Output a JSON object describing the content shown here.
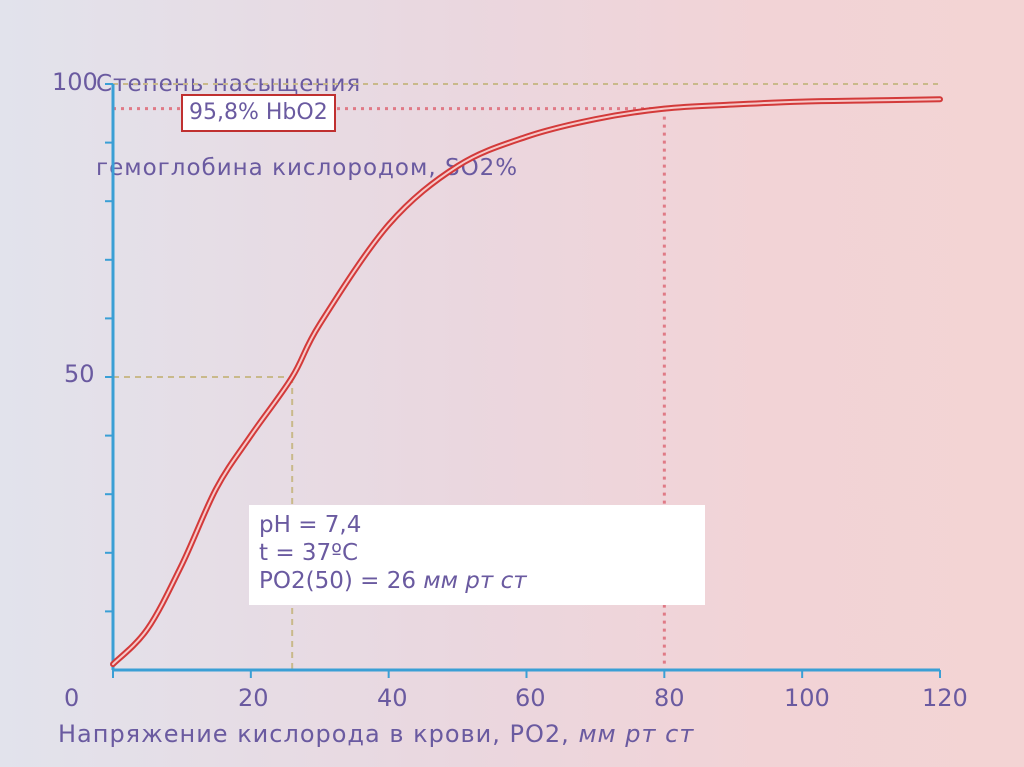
{
  "chart_data": {
    "type": "line",
    "title": "",
    "ylabel_lines": [
      "Степень насыщения",
      "гемоглобина кислородом, SO2%"
    ],
    "xlabel": "Напряжение кислорода в крови, PO2,",
    "xlabel_unit": "мм рт ст",
    "xlim": [
      0,
      120
    ],
    "ylim": [
      0,
      100
    ],
    "x_ticks": [
      0,
      20,
      40,
      60,
      80,
      100,
      120
    ],
    "y_ticks": [
      50,
      100
    ],
    "x": [
      0,
      5,
      10,
      15,
      20,
      26,
      30,
      40,
      50,
      60,
      70,
      80,
      90,
      100,
      110,
      120
    ],
    "y": [
      1,
      7,
      18,
      31,
      40,
      50,
      59,
      76,
      86,
      91,
      94,
      95.8,
      96.5,
      97,
      97.2,
      97.4
    ],
    "reference_points": [
      {
        "x": 26,
        "y": 50
      },
      {
        "x": 80,
        "y": 95.8
      }
    ],
    "annotations": {
      "callout": "95,8% HbO2",
      "conditions": [
        "pH = 7,4",
        "t = 37ºC",
        "PO2(50) = 26"
      ],
      "conditions_unit": "мм рт ст"
    },
    "grid": false,
    "line_color": "#d33a3a",
    "axis_color": "#3a9fd5"
  }
}
